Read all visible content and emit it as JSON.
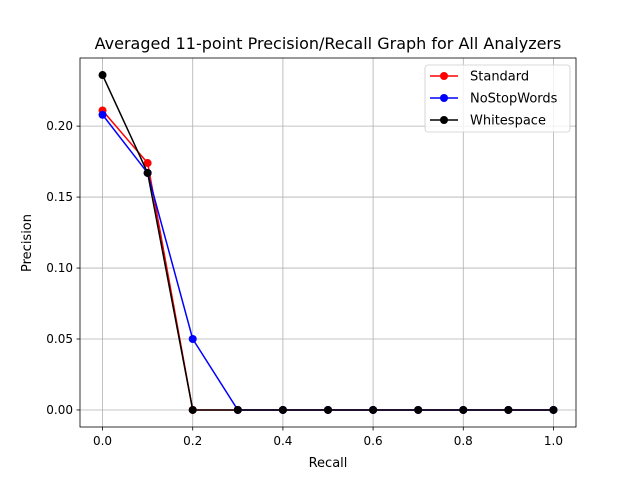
{
  "chart_data": {
    "type": "line",
    "title": "Averaged 11-point Precision/Recall Graph for All Analyzers",
    "xlabel": "Recall",
    "ylabel": "Precision",
    "x": [
      0.0,
      0.1,
      0.2,
      0.3,
      0.4,
      0.5,
      0.6,
      0.7,
      0.8,
      0.9,
      1.0
    ],
    "xlim": [
      -0.05,
      1.05
    ],
    "ylim": [
      -0.012,
      0.248
    ],
    "xticks": [
      "0.0",
      "0.2",
      "0.4",
      "0.6",
      "0.8",
      "1.0"
    ],
    "yticks": [
      "0.00",
      "0.05",
      "0.10",
      "0.15",
      "0.20"
    ],
    "grid": true,
    "legend_position": "top-right",
    "series": [
      {
        "name": "Standard",
        "color": "#ff0000",
        "values": [
          0.211,
          0.174,
          0.0,
          0.0,
          0.0,
          0.0,
          0.0,
          0.0,
          0.0,
          0.0,
          0.0
        ]
      },
      {
        "name": "NoStopWords",
        "color": "#0000ff",
        "values": [
          0.208,
          0.167,
          0.05,
          0.0,
          0.0,
          0.0,
          0.0,
          0.0,
          0.0,
          0.0,
          0.0
        ]
      },
      {
        "name": "Whitespace",
        "color": "#000000",
        "values": [
          0.236,
          0.167,
          0.0,
          0.0,
          0.0,
          0.0,
          0.0,
          0.0,
          0.0,
          0.0,
          0.0
        ]
      }
    ]
  }
}
